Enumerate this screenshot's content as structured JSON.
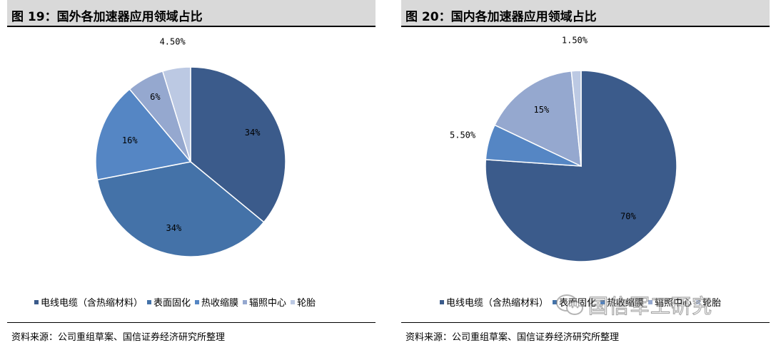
{
  "charts": {
    "left": {
      "figure_title": "图 19：国外各加速器应用领域占比",
      "source": "资料来源：公司重组草案、国信证券经济研究所整理"
    },
    "right": {
      "figure_title": "图 20：国内各加速器应用领域占比",
      "source": "资料来源：公司重组草案、国信证券经济研究所整理"
    }
  },
  "watermark": {
    "text": "国信军工研究",
    "icon": "wechat-icon"
  },
  "colors": [
    "#3b5b8b",
    "#4472a8",
    "#5586c4",
    "#95a8cf",
    "#bcc9e3"
  ],
  "chart_data": [
    {
      "type": "pie",
      "title": "图 19：国外各加速器应用领域占比",
      "categories": [
        "电线电缆（含热缩材料）",
        "表面固化",
        "热收缩膜",
        "辐照中心",
        "轮胎"
      ],
      "values": [
        34,
        34,
        16,
        6,
        4.5
      ],
      "labels": [
        "34%",
        "34%",
        "16%",
        "6%",
        "4.50%"
      ],
      "legend": "bottom"
    },
    {
      "type": "pie",
      "title": "图 20：国内各加速器应用领域占比",
      "categories": [
        "电线电缆（含热缩材料）",
        "表面固化",
        "热收缩膜",
        "辐照中心",
        "轮胎"
      ],
      "values": [
        70,
        0,
        5.5,
        15,
        1.5
      ],
      "labels": [
        "70%",
        "",
        "5.50%",
        "15%",
        "1.50%"
      ],
      "legend": "bottom"
    }
  ]
}
